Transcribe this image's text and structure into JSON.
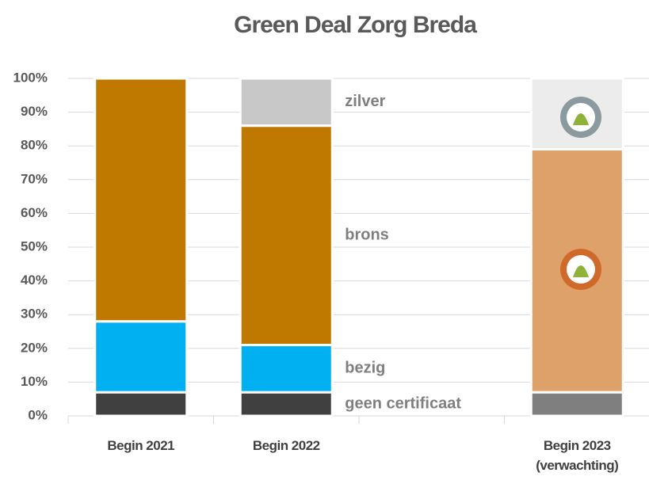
{
  "chart_data": {
    "type": "stacked_bar",
    "title": "Green Deal Zorg Breda",
    "categories": [
      "Begin 2021",
      "Begin 2022",
      null,
      "Begin 2023 (verwachting)"
    ],
    "series": [
      {
        "name": "geen certificaat",
        "colors": [
          "#404040",
          "#404040",
          null,
          "#7f7f7f"
        ],
        "values": [
          7,
          7,
          null,
          7
        ]
      },
      {
        "name": "bezig",
        "colors": [
          "#00b0f0",
          "#00b0f0",
          null,
          "#00b0f0"
        ],
        "values": [
          21,
          14,
          null,
          0
        ]
      },
      {
        "name": "brons",
        "colors": [
          "#bf7800",
          "#bf7800",
          null,
          "#dfa16a"
        ],
        "values": [
          72,
          65,
          null,
          72
        ]
      },
      {
        "name": "zilver",
        "colors": [
          "#c8c8c8",
          "#c8c8c8",
          null,
          "#ececec"
        ],
        "values": [
          0,
          14,
          null,
          21
        ]
      }
    ],
    "ylim": [
      0,
      100
    ],
    "yticks": [
      {
        "value": 0,
        "label": "0%"
      },
      {
        "value": 10,
        "label": "10%"
      },
      {
        "value": 20,
        "label": "20%"
      },
      {
        "value": 30,
        "label": "30%"
      },
      {
        "value": 40,
        "label": "40%"
      },
      {
        "value": 50,
        "label": "50%"
      },
      {
        "value": 60,
        "label": "60%"
      },
      {
        "value": 70,
        "label": "70%"
      },
      {
        "value": 80,
        "label": "80%"
      },
      {
        "value": 90,
        "label": "90%"
      },
      {
        "value": 100,
        "label": "100%"
      }
    ],
    "grid": true
  }
}
